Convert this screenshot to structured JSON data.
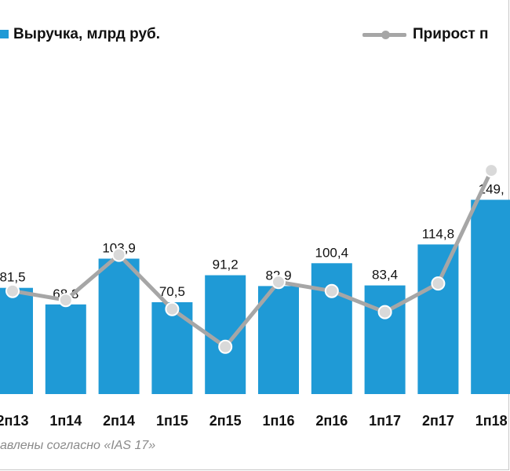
{
  "legend": {
    "bar_label": "Выручка, млрд руб.",
    "line_label": "Прирост п"
  },
  "footnote": "авлены согласно «IAS 17»",
  "colors": {
    "bar": "#1f9ad6",
    "line": "#a6a6a6",
    "text": "#111111",
    "footnote": "#8a8a8a"
  },
  "chart_data": {
    "type": "bar",
    "categories": [
      "2п13",
      "1п14",
      "2п14",
      "1п15",
      "2п15",
      "1п16",
      "2п16",
      "1п17",
      "2п17",
      "1п18"
    ],
    "ylim": [
      0,
      190
    ],
    "series": [
      {
        "name": "Выручка, млрд руб.",
        "type": "bar",
        "values": [
          81.5,
          68.8,
          103.9,
          70.5,
          91.2,
          82.9,
          100.4,
          83.4,
          114.8,
          149.1
        ],
        "labels": [
          "81,5",
          "68,8",
          "103,9",
          "70,5",
          "91,2",
          "82,9",
          "100,4",
          "83,4",
          "114,8",
          "149,"
        ]
      },
      {
        "name": "Прирост п",
        "type": "line",
        "values": [
          24,
          18,
          48,
          12,
          -13,
          30,
          24,
          10,
          29,
          104
        ],
        "ylim": [
          -35,
          140
        ]
      }
    ]
  }
}
